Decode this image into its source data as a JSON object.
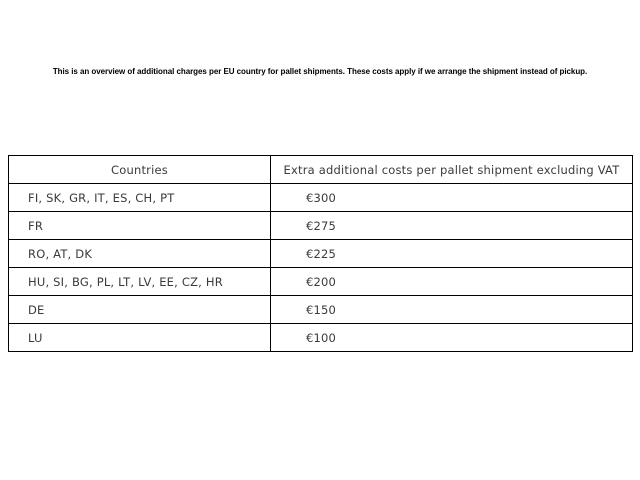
{
  "intro": {
    "text": "This is an overview of additional charges per EU country for pallet shipments. These costs apply if we arrange the shipment instead of pickup."
  },
  "table": {
    "headers": {
      "countries": "Countries",
      "cost": "Extra additional costs per pallet shipment excluding VAT"
    },
    "rows": [
      {
        "countries": "FI, SK, GR, IT, ES, CH, PT",
        "cost": "€300"
      },
      {
        "countries": "FR",
        "cost": "€275"
      },
      {
        "countries": "RO, AT, DK",
        "cost": "€225"
      },
      {
        "countries": "HU, SI, BG, PL, LT, LV, EE, CZ, HR",
        "cost": "€200"
      },
      {
        "countries": "DE",
        "cost": "€150"
      },
      {
        "countries": "LU",
        "cost": "€100"
      }
    ]
  },
  "colors": {
    "background": "#ffffff",
    "table_border": "#000000",
    "table_text": "#3a3a3a",
    "intro_text": "#000000"
  }
}
